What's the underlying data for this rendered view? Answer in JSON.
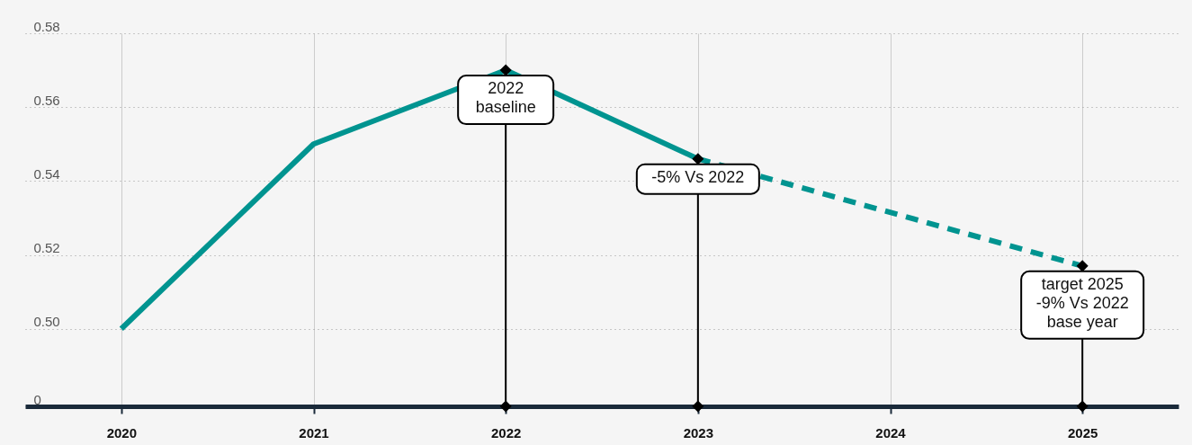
{
  "chart_data": {
    "type": "line",
    "categories": [
      "2020",
      "2021",
      "2022",
      "2023",
      "2024",
      "2025"
    ],
    "series": [
      {
        "color": "#009490",
        "line_style": "solid",
        "marker": "none",
        "values": [
          0.5,
          0.55,
          0.57,
          0.546,
          null,
          null
        ]
      },
      {
        "color": "#009490",
        "line_style": "dashed",
        "marker": "none",
        "values": [
          null,
          null,
          null,
          0.546,
          null,
          0.517
        ]
      },
      {
        "type": "scatter",
        "color": "#000000",
        "marker": "diamond",
        "values": [
          null,
          null,
          0.57,
          0.546,
          null,
          0.517
        ]
      }
    ],
    "ylim": [
      0.479,
      0.58
    ],
    "yticks": [
      {
        "value": 0.479,
        "label": "0"
      },
      {
        "value": 0.5,
        "label": "0.50"
      },
      0.52,
      0.54,
      0.56,
      0.58
    ],
    "grid": true,
    "annotations": [
      {
        "text": "2022\nbaseline",
        "x": "2022",
        "y": 0.57
      },
      {
        "text": "-5% Vs 2022",
        "x": "2023",
        "y": 0.546
      },
      {
        "text": "target 2025\n-9% Vs 2022\nbase year",
        "x": "2025",
        "y": 0.517
      }
    ]
  }
}
